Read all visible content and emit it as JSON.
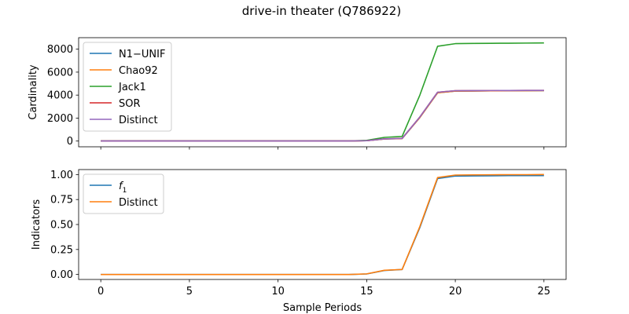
{
  "title": "drive-in theater (Q786922)",
  "chart_data": [
    {
      "type": "line",
      "ylabel": "Cardinality",
      "xlabel": "",
      "xlim": [
        -1.25,
        26.25
      ],
      "ylim": [
        -500,
        9000
      ],
      "xticks": [
        0,
        5,
        10,
        15,
        20,
        25
      ],
      "yticks": [
        0,
        2000,
        4000,
        6000,
        8000
      ],
      "ytick_labels": [
        "0",
        "2000",
        "4000",
        "6000",
        "8000"
      ],
      "show_xtick_labels": false,
      "legend_position": "upper-left",
      "x": [
        0,
        1,
        2,
        3,
        4,
        5,
        6,
        7,
        8,
        9,
        10,
        11,
        12,
        13,
        14,
        15,
        16,
        17,
        18,
        19,
        20,
        21,
        22,
        23,
        24,
        25
      ],
      "series": [
        {
          "name": "N1−UNIF",
          "color": "#1f77b4",
          "values": [
            5,
            5,
            5,
            5,
            5,
            5,
            5,
            5,
            5,
            5,
            5,
            5,
            5,
            5,
            5,
            30,
            180,
            220,
            2050,
            4200,
            4350,
            4360,
            4370,
            4380,
            4385,
            4390
          ]
        },
        {
          "name": "Chao92",
          "color": "#ff7f0e",
          "values": [
            5,
            5,
            5,
            5,
            5,
            5,
            5,
            5,
            5,
            5,
            5,
            5,
            5,
            5,
            5,
            30,
            180,
            220,
            2050,
            4200,
            4350,
            4360,
            4370,
            4380,
            4385,
            4390
          ]
        },
        {
          "name": "Jack1",
          "color": "#2ca02c",
          "values": [
            5,
            5,
            5,
            5,
            5,
            5,
            5,
            5,
            5,
            5,
            5,
            5,
            5,
            5,
            5,
            60,
            320,
            400,
            4000,
            8250,
            8480,
            8500,
            8510,
            8520,
            8530,
            8540
          ]
        },
        {
          "name": "SOR",
          "color": "#d62728",
          "values": [
            5,
            5,
            5,
            5,
            5,
            5,
            5,
            5,
            5,
            5,
            5,
            5,
            5,
            5,
            5,
            30,
            190,
            230,
            2100,
            4250,
            4380,
            4390,
            4395,
            4400,
            4405,
            4410
          ]
        },
        {
          "name": "Distinct",
          "color": "#9467bd",
          "values": [
            5,
            5,
            5,
            5,
            5,
            5,
            5,
            5,
            5,
            5,
            5,
            5,
            5,
            5,
            5,
            30,
            190,
            230,
            2100,
            4250,
            4380,
            4390,
            4395,
            4400,
            4405,
            4410
          ]
        }
      ]
    },
    {
      "type": "line",
      "ylabel": "Indicators",
      "xlabel": "Sample Periods",
      "xlim": [
        -1.25,
        26.25
      ],
      "ylim": [
        -0.05,
        1.05
      ],
      "xticks": [
        0,
        5,
        10,
        15,
        20,
        25
      ],
      "xtick_labels": [
        "0",
        "5",
        "10",
        "15",
        "20",
        "25"
      ],
      "yticks": [
        0,
        0.25,
        0.5,
        0.75,
        1.0
      ],
      "ytick_labels": [
        "0.00",
        "0.25",
        "0.50",
        "0.75",
        "1.00"
      ],
      "show_xtick_labels": true,
      "legend_position": "upper-left",
      "x": [
        0,
        1,
        2,
        3,
        4,
        5,
        6,
        7,
        8,
        9,
        10,
        11,
        12,
        13,
        14,
        15,
        16,
        17,
        18,
        19,
        20,
        21,
        22,
        23,
        24,
        25
      ],
      "series": [
        {
          "name": "f1",
          "color": "#1f77b4",
          "values": [
            0,
            0,
            0,
            0,
            0,
            0,
            0,
            0,
            0,
            0,
            0,
            0,
            0,
            0,
            0,
            0.005,
            0.04,
            0.05,
            0.47,
            0.96,
            0.985,
            0.987,
            0.988,
            0.989,
            0.989,
            0.99
          ]
        },
        {
          "name": "Distinct",
          "color": "#ff7f0e",
          "values": [
            0,
            0,
            0,
            0,
            0,
            0,
            0,
            0,
            0,
            0,
            0,
            0,
            0,
            0,
            0,
            0.006,
            0.042,
            0.05,
            0.48,
            0.97,
            0.995,
            0.997,
            0.998,
            0.999,
            0.999,
            1.0
          ]
        }
      ]
    }
  ]
}
